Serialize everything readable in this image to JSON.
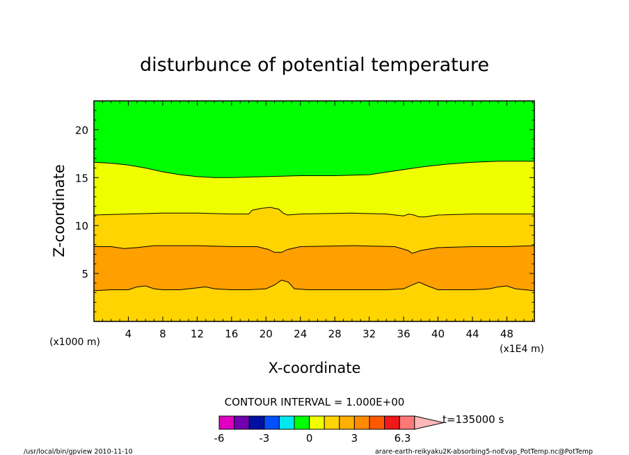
{
  "chart_data": {
    "type": "contour",
    "title": "disturbunce of potential temperature",
    "xlabel": "X-coordinate",
    "ylabel": "Z-coordinate",
    "x_unit_label": "(x1E4 m)",
    "y_unit_label": "(x1000 m)",
    "x_ticks": [
      "4",
      "8",
      "12",
      "16",
      "20",
      "24",
      "28",
      "32",
      "36",
      "40",
      "44",
      "48"
    ],
    "y_ticks": [
      "5",
      "10",
      "15",
      "20"
    ],
    "xlim": [
      0,
      51.2
    ],
    "ylim": [
      0,
      23
    ],
    "contour_levels": [
      3,
      4,
      5,
      6
    ],
    "contours": [
      {
        "level": 3,
        "points": [
          [
            0,
            3.2
          ],
          [
            2,
            3.3
          ],
          [
            4,
            3.3
          ],
          [
            5,
            3.6
          ],
          [
            6,
            3.7
          ],
          [
            7,
            3.4
          ],
          [
            8,
            3.3
          ],
          [
            10,
            3.3
          ],
          [
            11,
            3.4
          ],
          [
            12,
            3.5
          ],
          [
            13,
            3.6
          ],
          [
            14,
            3.4
          ],
          [
            16,
            3.3
          ],
          [
            18,
            3.3
          ],
          [
            20,
            3.4
          ],
          [
            21,
            3.8
          ],
          [
            21.8,
            4.3
          ],
          [
            22.6,
            4.1
          ],
          [
            23.3,
            3.4
          ],
          [
            25,
            3.3
          ],
          [
            30,
            3.3
          ],
          [
            34,
            3.3
          ],
          [
            36,
            3.4
          ],
          [
            37,
            3.8
          ],
          [
            37.8,
            4.1
          ],
          [
            38.8,
            3.7
          ],
          [
            40,
            3.3
          ],
          [
            44,
            3.3
          ],
          [
            46,
            3.4
          ],
          [
            47,
            3.6
          ],
          [
            48,
            3.7
          ],
          [
            49,
            3.4
          ],
          [
            51.2,
            3.2
          ]
        ]
      },
      {
        "level": 4,
        "points": [
          [
            0,
            7.8
          ],
          [
            2,
            7.8
          ],
          [
            3.5,
            7.6
          ],
          [
            5,
            7.7
          ],
          [
            7,
            7.9
          ],
          [
            12,
            7.9
          ],
          [
            16,
            7.8
          ],
          [
            19,
            7.8
          ],
          [
            20.3,
            7.5
          ],
          [
            21,
            7.2
          ],
          [
            21.8,
            7.2
          ],
          [
            22.5,
            7.5
          ],
          [
            24,
            7.8
          ],
          [
            30,
            7.9
          ],
          [
            35,
            7.8
          ],
          [
            36.5,
            7.4
          ],
          [
            37,
            7.1
          ],
          [
            38,
            7.4
          ],
          [
            40,
            7.7
          ],
          [
            44,
            7.8
          ],
          [
            48,
            7.8
          ],
          [
            51.2,
            7.9
          ]
        ]
      },
      {
        "level": 5,
        "points": [
          [
            0,
            11.1
          ],
          [
            4,
            11.2
          ],
          [
            8,
            11.3
          ],
          [
            12,
            11.3
          ],
          [
            16,
            11.2
          ],
          [
            18,
            11.2
          ],
          [
            18.4,
            11.6
          ],
          [
            19.5,
            11.8
          ],
          [
            20.5,
            11.9
          ],
          [
            21.5,
            11.7
          ],
          [
            22,
            11.3
          ],
          [
            22.5,
            11.1
          ],
          [
            24,
            11.2
          ],
          [
            30,
            11.3
          ],
          [
            34,
            11.2
          ],
          [
            36,
            11.0
          ],
          [
            36.6,
            11.2
          ],
          [
            37.2,
            11.1
          ],
          [
            37.8,
            10.9
          ],
          [
            38.5,
            10.9
          ],
          [
            40,
            11.1
          ],
          [
            44,
            11.2
          ],
          [
            48,
            11.2
          ],
          [
            51.2,
            11.2
          ]
        ]
      },
      {
        "level": 6,
        "points": [
          [
            0,
            16.6
          ],
          [
            2,
            16.5
          ],
          [
            4,
            16.3
          ],
          [
            6,
            16.0
          ],
          [
            8,
            15.6
          ],
          [
            10,
            15.3
          ],
          [
            12,
            15.1
          ],
          [
            14,
            15.0
          ],
          [
            16,
            15.0
          ],
          [
            20,
            15.1
          ],
          [
            24,
            15.2
          ],
          [
            28,
            15.2
          ],
          [
            32,
            15.3
          ],
          [
            35,
            15.7
          ],
          [
            38,
            16.1
          ],
          [
            41,
            16.4
          ],
          [
            44,
            16.6
          ],
          [
            47,
            16.7
          ],
          [
            51.2,
            16.7
          ]
        ]
      }
    ],
    "band_fill_colors": [
      "#ffd400",
      "#ff9f00",
      "#ffd400",
      "#f0ff00",
      "#00ff00"
    ],
    "contour_interval_label": "CONTOUR INTERVAL = 1.000E+00",
    "colorbar": {
      "colors": [
        "#e000c0",
        "#7000b0",
        "#0010a0",
        "#0050ff",
        "#00e8f0",
        "#00ff00",
        "#f0ff00",
        "#ffd400",
        "#ffb000",
        "#ff8c00",
        "#ff5800",
        "#f01818",
        "#ff7878",
        "#ffb8b8"
      ],
      "tick_labels": [
        "-6",
        "-3",
        "0",
        "3",
        "6.3"
      ]
    },
    "time_label": "t=135000 s"
  },
  "footer": {
    "left": "/usr/local/bin/gpview  2010-11-10",
    "right": "arare-earth-reikyaku2K-absorbing5-noEvap_PotTemp.nc@PotTemp"
  }
}
